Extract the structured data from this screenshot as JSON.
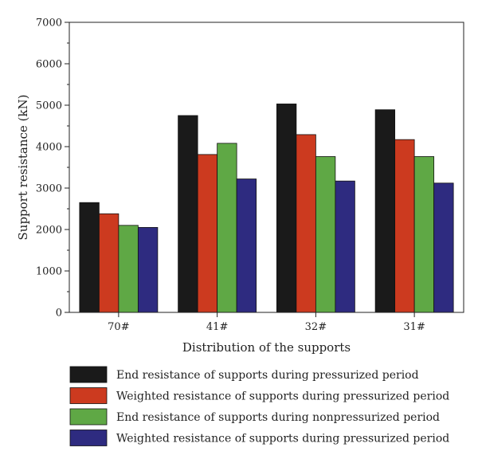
{
  "chart_data": {
    "type": "bar",
    "title": "",
    "xlabel": "Distribution of the supports",
    "ylabel": "Support resistance (kN)",
    "categories": [
      "70#",
      "41#",
      "32#",
      "31#"
    ],
    "ylim": [
      0,
      7000
    ],
    "yticks": [
      0,
      1000,
      2000,
      3000,
      4000,
      5000,
      6000,
      7000
    ],
    "grid": false,
    "legend_position": "bottom",
    "series": [
      {
        "name": "End resistance of supports during pressurized period",
        "color": "#1a1a1a",
        "values": [
          2650,
          4750,
          5030,
          4890
        ]
      },
      {
        "name": "Weighted resistance of supports during pressurized period",
        "color": "#cc3a1f",
        "values": [
          2380,
          3810,
          4290,
          4170
        ]
      },
      {
        "name": "End resistance of supports during nonpressurized period",
        "color": "#5fa845",
        "values": [
          2100,
          4080,
          3760,
          3760
        ]
      },
      {
        "name": "Weighted resistance of supports during pressurized period",
        "color": "#2e2b80",
        "values": [
          2050,
          3220,
          3170,
          3120
        ]
      }
    ]
  }
}
